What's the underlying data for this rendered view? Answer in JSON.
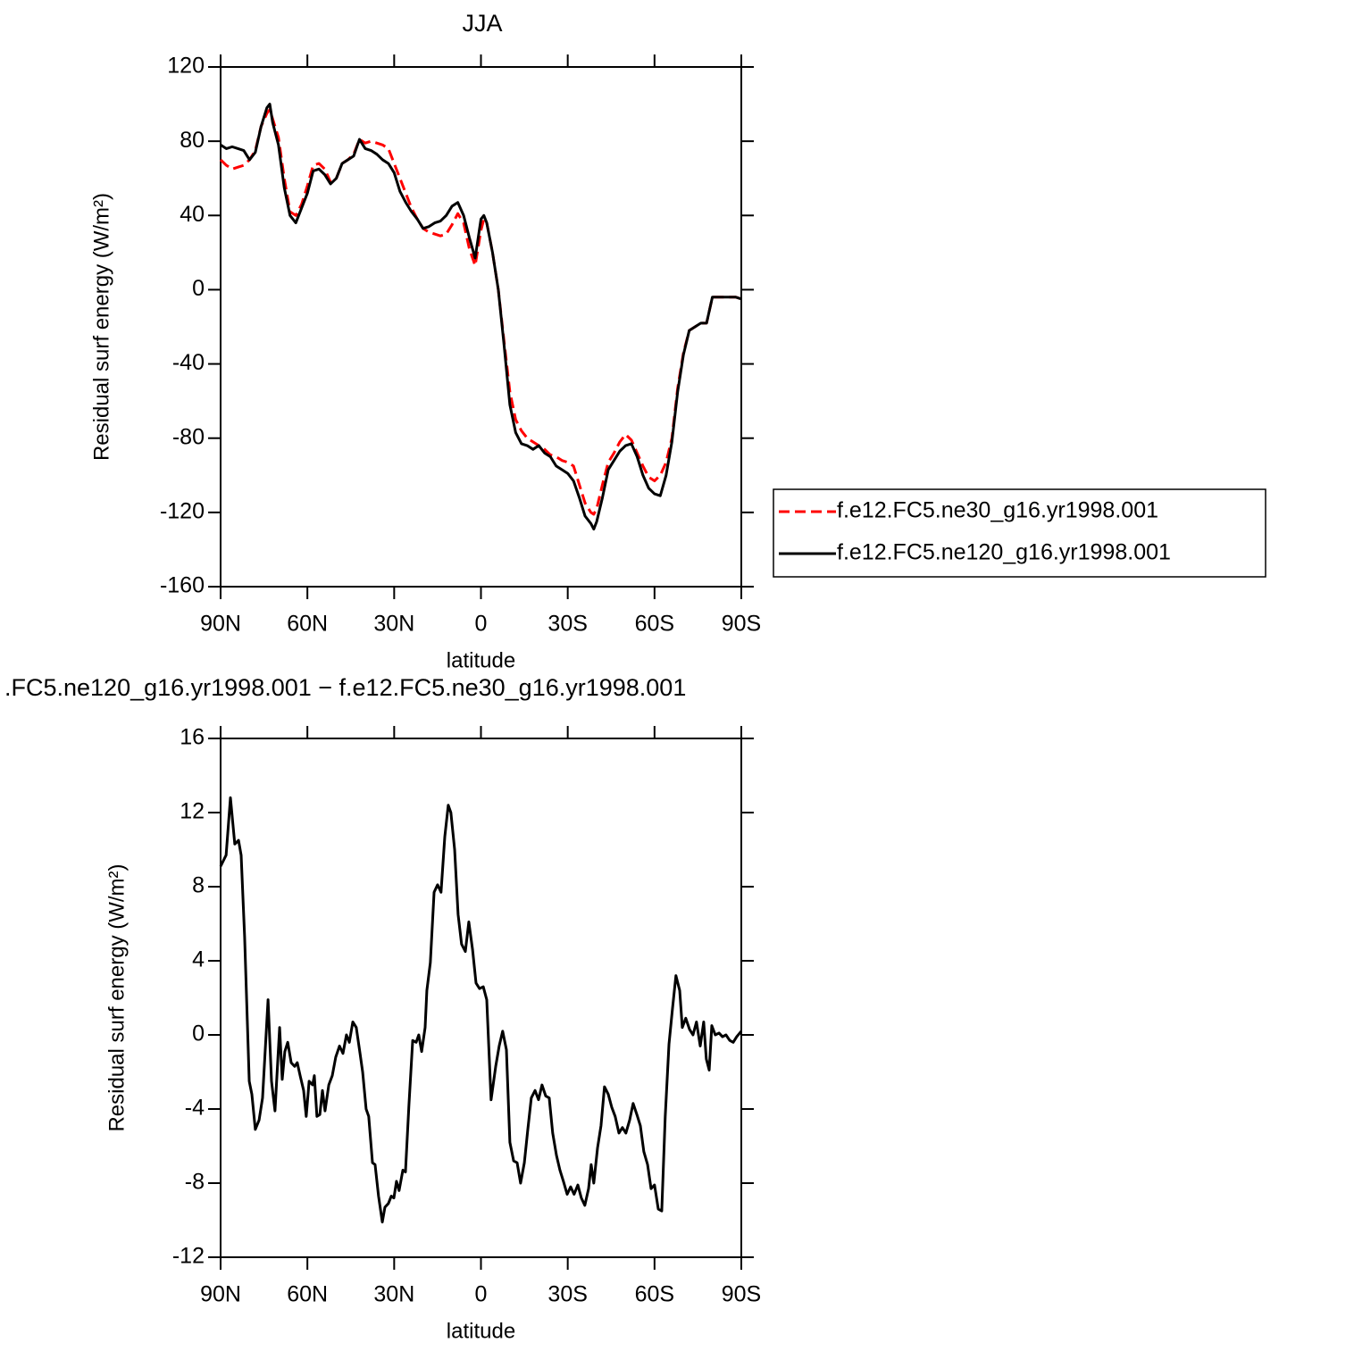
{
  "chart_data": [
    {
      "type": "line",
      "title": "JJA",
      "xlabel": "latitude",
      "ylabel": "Residual surf energy (W/m²)",
      "xlim": [
        90,
        -90
      ],
      "ylim": [
        -160,
        120
      ],
      "xticks": [
        {
          "value": 90,
          "label": "90N"
        },
        {
          "value": 60,
          "label": "60N"
        },
        {
          "value": 30,
          "label": "30N"
        },
        0,
        {
          "value": -30,
          "label": "30S"
        },
        {
          "value": -60,
          "label": "60S"
        },
        {
          "value": -90,
          "label": "90S"
        }
      ],
      "yticks": [
        120,
        80,
        40,
        0,
        -40,
        -80,
        -120,
        -160
      ],
      "legend": "outside-right",
      "x": [
        90,
        88,
        86,
        84,
        82,
        80,
        78,
        76,
        74,
        73,
        72,
        70,
        68,
        66,
        64,
        62,
        60,
        58,
        56,
        54,
        52,
        50,
        48,
        46,
        44,
        42,
        40,
        38,
        36,
        34,
        32,
        30,
        28,
        26,
        24,
        22,
        20,
        18,
        16,
        14,
        12,
        10,
        8,
        6,
        4,
        2,
        0,
        -1,
        -2,
        -4,
        -6,
        -8,
        -10,
        -12,
        -14,
        -16,
        -18,
        -20,
        -22,
        -24,
        -26,
        -28,
        -30,
        -32,
        -34,
        -36,
        -38,
        -39,
        -40,
        -42,
        -44,
        -46,
        -48,
        -50,
        -52,
        -54,
        -56,
        -58,
        -60,
        -62,
        -64,
        -66,
        -68,
        -70,
        -72,
        -74,
        -76,
        -78,
        -80,
        -84,
        -88,
        -90
      ],
      "series": [
        {
          "name": "f.e12.FC5.ne30_g16.yr1998.001",
          "color": "#ff0000",
          "style": "dashed",
          "values": [
            70,
            67,
            65,
            66,
            67,
            70,
            75,
            88,
            95,
            97,
            92,
            82,
            60,
            42,
            40,
            46,
            56,
            67,
            68,
            65,
            58,
            60,
            68,
            70,
            73,
            81,
            79,
            80,
            79,
            78,
            76,
            68,
            60,
            52,
            44,
            38,
            33,
            31,
            30,
            29,
            30,
            35,
            41,
            36,
            22,
            13,
            32,
            38,
            36,
            20,
            0,
            -28,
            -55,
            -70,
            -76,
            -80,
            -82,
            -84,
            -86,
            -89,
            -90,
            -92,
            -93,
            -95,
            -105,
            -115,
            -120,
            -121,
            -118,
            -105,
            -93,
            -88,
            -82,
            -78,
            -81,
            -88,
            -95,
            -101,
            -103,
            -100,
            -93,
            -80,
            -53,
            -34,
            -22,
            -20,
            -18,
            -18,
            -4,
            -4,
            -4,
            -5
          ]
        },
        {
          "name": "f.e12.FC5.ne120_g16.yr1998.001",
          "color": "#000000",
          "style": "solid",
          "values": [
            78,
            76,
            77,
            76,
            75,
            70,
            74,
            88,
            98,
            100,
            90,
            78,
            55,
            40,
            36,
            44,
            52,
            64,
            65,
            62,
            57,
            60,
            68,
            70,
            72,
            81,
            76,
            75,
            73,
            70,
            68,
            63,
            53,
            47,
            42,
            38,
            33,
            34,
            36,
            37,
            40,
            45,
            47,
            40,
            28,
            17,
            38,
            40,
            36,
            20,
            0,
            -30,
            -62,
            -77,
            -83,
            -84,
            -86,
            -84,
            -88,
            -90,
            -95,
            -97,
            -99,
            -103,
            -112,
            -122,
            -126,
            -129,
            -125,
            -112,
            -97,
            -92,
            -87,
            -84,
            -83,
            -90,
            -100,
            -107,
            -110,
            -111,
            -100,
            -82,
            -55,
            -35,
            -22,
            -20,
            -18,
            -18,
            -4,
            -4,
            -4,
            -5
          ]
        }
      ]
    },
    {
      "type": "line",
      "title": ".FC5.ne120_g16.yr1998.001 − f.e12.FC5.ne30_g16.yr1998.001",
      "xlabel": "latitude",
      "ylabel": "Residual surf energy (W/m²)",
      "xlim": [
        90,
        -90
      ],
      "ylim": [
        -12,
        16
      ],
      "xticks": [
        {
          "value": 90,
          "label": "90N"
        },
        {
          "value": 60,
          "label": "60N"
        },
        {
          "value": 30,
          "label": "30N"
        },
        0,
        {
          "value": -30,
          "label": "30S"
        },
        {
          "value": -60,
          "label": "60S"
        },
        {
          "value": -90,
          "label": "90S"
        }
      ],
      "yticks": [
        16,
        12,
        8,
        4,
        0,
        -4,
        -8,
        -12
      ],
      "color": "#000000",
      "x": [
        90,
        88.1,
        86.6,
        85.1,
        83.8,
        82.9,
        81.7,
        80.1,
        79.2,
        78.0,
        76.7,
        75.5,
        73.6,
        72.4,
        71.2,
        69.6,
        68.7,
        67.8,
        66.8,
        65.6,
        64.4,
        63.5,
        62.5,
        61.3,
        60.4,
        59.4,
        58.2,
        57.6,
        56.7,
        55.7,
        54.8,
        53.9,
        52.6,
        51.4,
        50.2,
        48.9,
        47.7,
        46.5,
        45.5,
        44.3,
        43.1,
        41.8,
        40.9,
        39.7,
        38.8,
        37.5,
        36.6,
        35.4,
        34.1,
        33.2,
        32.0,
        31.0,
        30.1,
        29.2,
        28.3,
        27.0,
        26.1,
        24.9,
        23.6,
        22.4,
        21.5,
        20.5,
        19.3,
        18.7,
        17.5,
        16.2,
        15.0,
        13.8,
        12.5,
        11.3,
        10.4,
        9.1,
        7.9,
        6.7,
        5.4,
        4.2,
        2.9,
        1.7,
        0.5,
        -0.8,
        -2.0,
        -3.5,
        -5.1,
        -6.3,
        -7.5,
        -8.8,
        -10.0,
        -11.3,
        -12.5,
        -13.7,
        -15.0,
        -16.2,
        -17.4,
        -18.7,
        -19.9,
        -21.1,
        -22.4,
        -23.6,
        -24.8,
        -26.1,
        -27.3,
        -28.5,
        -29.8,
        -31.0,
        -32.2,
        -33.5,
        -34.7,
        -35.9,
        -37.2,
        -38.1,
        -39.0,
        -40.3,
        -41.5,
        -42.7,
        -44.0,
        -45.2,
        -46.4,
        -47.7,
        -48.9,
        -50.1,
        -51.4,
        -52.6,
        -53.9,
        -55.1,
        -56.3,
        -57.6,
        -58.8,
        -60.0,
        -61.3,
        -62.5,
        -63.7,
        -65.0,
        -66.2,
        -67.4,
        -68.7,
        -69.6,
        -70.8,
        -72.1,
        -73.3,
        -74.5,
        -75.8,
        -77.0,
        -77.9,
        -78.9,
        -79.8,
        -81.0,
        -82.3,
        -83.5,
        -84.7,
        -86.0,
        -87.2,
        -88.4,
        -90
      ],
      "values": [
        9.1,
        9.7,
        12.8,
        10.3,
        10.5,
        9.7,
        5.3,
        -2.5,
        -3.2,
        -5.1,
        -4.6,
        -3.4,
        1.9,
        -2.5,
        -4.1,
        0.4,
        -2.4,
        -0.9,
        -0.4,
        -1.5,
        -1.7,
        -1.5,
        -2.2,
        -3.0,
        -4.4,
        -2.5,
        -2.7,
        -2.2,
        -4.4,
        -4.3,
        -3.0,
        -4.1,
        -2.7,
        -2.2,
        -1.2,
        -0.6,
        -1.0,
        0,
        -0.4,
        0.7,
        0.4,
        -1.0,
        -2.0,
        -4.0,
        -4.4,
        -6.9,
        -7.0,
        -8.7,
        -10.1,
        -9.3,
        -9.1,
        -8.7,
        -8.8,
        -7.9,
        -8.4,
        -7.3,
        -7.4,
        -3.8,
        -0.3,
        -0.4,
        0,
        -0.9,
        0.4,
        2.4,
        3.9,
        7.7,
        8.1,
        7.7,
        10.7,
        12.4,
        12.0,
        10.0,
        6.5,
        4.9,
        4.5,
        6.1,
        4.6,
        2.8,
        2.5,
        2.6,
        1.9,
        -3.5,
        -1.7,
        -0.6,
        0.2,
        -0.8,
        -5.8,
        -6.8,
        -6.9,
        -8.0,
        -6.9,
        -5.1,
        -3.4,
        -3.0,
        -3.5,
        -2.7,
        -3.3,
        -3.4,
        -5.3,
        -6.5,
        -7.3,
        -7.9,
        -8.6,
        -8.2,
        -8.6,
        -8.1,
        -8.8,
        -9.2,
        -8.3,
        -7.0,
        -8.0,
        -6.1,
        -4.9,
        -2.8,
        -3.2,
        -3.9,
        -4.4,
        -5.3,
        -5.0,
        -5.3,
        -4.6,
        -3.7,
        -4.3,
        -4.9,
        -6.3,
        -7.0,
        -8.3,
        -8.1,
        -9.4,
        -9.5,
        -4.4,
        -0.5,
        1.4,
        3.2,
        2.4,
        0.4,
        0.9,
        0.3,
        0,
        0.7,
        -0.6,
        0.7,
        -1.3,
        -1.9,
        0.5,
        0,
        0.1,
        -0.1,
        0,
        -0.3,
        -0.4,
        -0.1,
        0.2
      ]
    }
  ]
}
